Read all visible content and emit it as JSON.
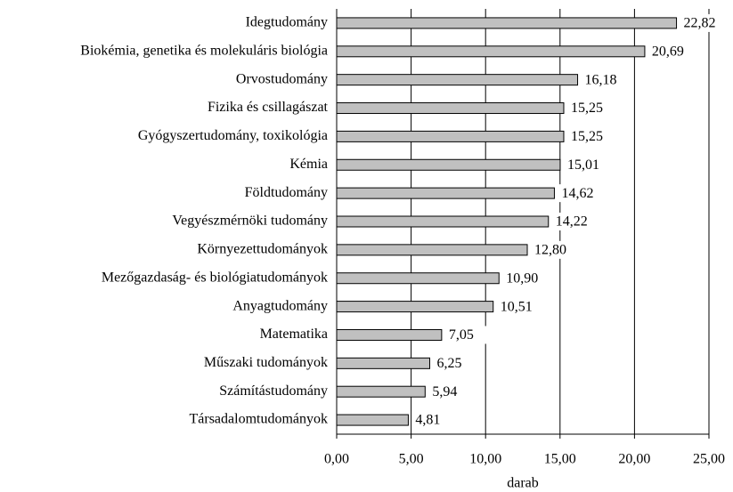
{
  "chart_data": {
    "type": "bar",
    "orientation": "horizontal",
    "x_label": "darab",
    "categories": [
      "Idegtudomány",
      "Biokémia, genetika és molekuláris biológia",
      "Orvostudomány",
      "Fizika és csillagászat",
      "Gyógyszertudomány, toxikológia",
      "Kémia",
      "Földtudomány",
      "Vegyészmérnöki tudomány",
      "Környezettudományok",
      "Mezőgazdaság- és biológiatudományok",
      "Anyagtudomány",
      "Matematika",
      "Műszaki tudományok",
      "Számítástudomány",
      "Társadalomtudományok"
    ],
    "values": [
      22.82,
      20.69,
      16.18,
      15.25,
      15.25,
      15.01,
      14.62,
      14.22,
      12.8,
      10.9,
      10.51,
      7.05,
      6.25,
      5.94,
      4.81
    ],
    "value_labels": [
      "22,82",
      "20,69",
      "16,18",
      "15,25",
      "15,25",
      "15,01",
      "14,62",
      "14,22",
      "12,80",
      "10,90",
      "10,51",
      "7,05",
      "6,25",
      "5,94",
      "4,81"
    ],
    "color": "#c0c0c0",
    "xlim": [
      0,
      25
    ],
    "xticks": [
      {
        "value": 0,
        "label": "0,00"
      },
      {
        "value": 5,
        "label": "5,00"
      },
      {
        "value": 10,
        "label": "10,00"
      },
      {
        "value": 15,
        "label": "15,00"
      },
      {
        "value": 20,
        "label": "20,00"
      },
      {
        "value": 25,
        "label": "25,00"
      }
    ],
    "grid": true
  }
}
